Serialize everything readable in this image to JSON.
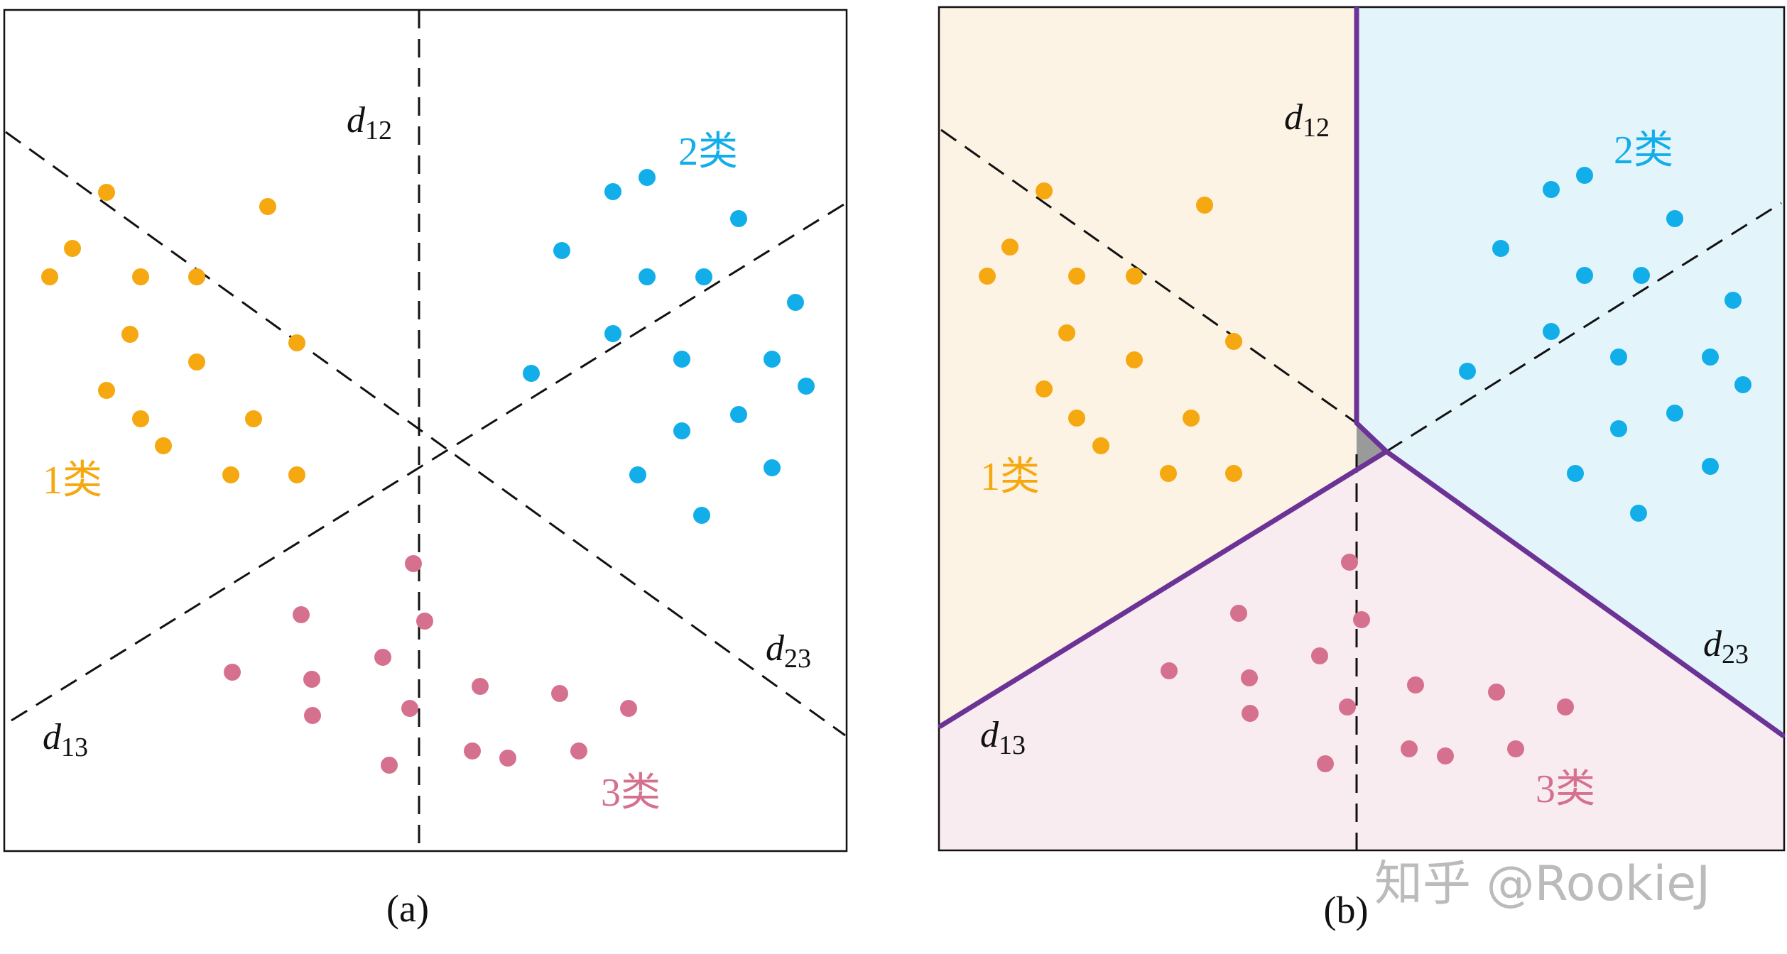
{
  "panel_a": {
    "caption": "(a)",
    "class_labels": {
      "c1": "1类",
      "c2": "2类",
      "c3": "3类"
    },
    "line_labels": {
      "d12": {
        "var": "d",
        "sub": "12"
      },
      "d13": {
        "var": "d",
        "sub": "13"
      },
      "d23": {
        "var": "d",
        "sub": "23"
      }
    }
  },
  "panel_b": {
    "caption": "(b)",
    "class_labels": {
      "c1": "1类",
      "c2": "2类",
      "c3": "3类"
    },
    "line_labels": {
      "d12": {
        "var": "d",
        "sub": "12"
      },
      "d13": {
        "var": "d",
        "sub": "13"
      },
      "d23": {
        "var": "d",
        "sub": "23"
      }
    }
  },
  "watermark": "知乎 @RookieJ",
  "colors": {
    "class1": "#F5A80F",
    "class2": "#12AEE9",
    "class3": "#D5718F",
    "region1": "#FCF3E4",
    "region2": "#E3F5FB",
    "region3": "#F8ECF1",
    "ambiguous_region": "#9A9A9A",
    "decision_boundary": "#6B3396",
    "dashed_line": "#111111",
    "label_text": "#111111",
    "watermark": "#BBBBBB"
  }
}
